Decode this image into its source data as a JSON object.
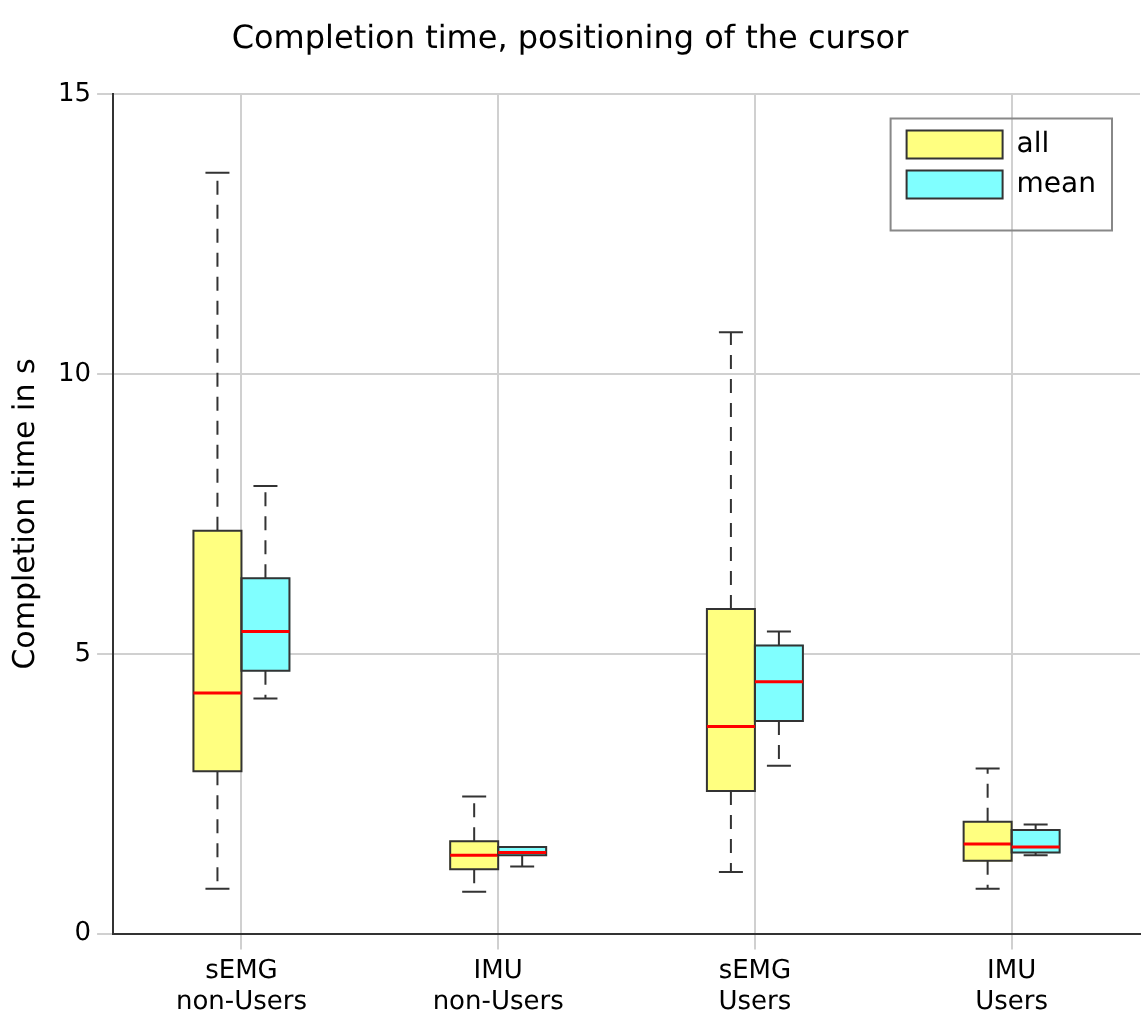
{
  "chart_data": {
    "type": "box",
    "title": "Completion time, positioning of the cursor",
    "ylabel": "Completion time in s",
    "categories": [
      "sEMG\nnon-Users",
      "IMU\nnon-Users",
      "sEMG\nUsers",
      "IMU\nUsers"
    ],
    "ylim": [
      0,
      15
    ],
    "yticks": [
      0,
      5,
      10,
      15
    ],
    "grid": true,
    "legend": "top right",
    "series": [
      {
        "name": "all",
        "color": "#ffff80",
        "boxes": [
          {
            "low": 0.8,
            "q1": 2.9,
            "median": 4.3,
            "q3": 7.2,
            "high": 13.6
          },
          {
            "low": 0.75,
            "q1": 1.15,
            "median": 1.4,
            "q3": 1.65,
            "high": 2.45
          },
          {
            "low": 1.1,
            "q1": 2.55,
            "median": 3.7,
            "q3": 5.8,
            "high": 10.75
          },
          {
            "low": 0.8,
            "q1": 1.3,
            "median": 1.6,
            "q3": 2.0,
            "high": 2.95
          }
        ]
      },
      {
        "name": "mean",
        "color": "#80ffff",
        "boxes": [
          {
            "low": 4.2,
            "q1": 4.7,
            "median": 5.4,
            "q3": 6.35,
            "high": 8.0
          },
          {
            "low": 1.2,
            "q1": 1.4,
            "median": 1.45,
            "q3": 1.55,
            "high": 1.55
          },
          {
            "low": 3.0,
            "q1": 3.8,
            "median": 4.5,
            "q3": 5.15,
            "high": 5.4
          },
          {
            "low": 1.4,
            "q1": 1.45,
            "median": 1.55,
            "q3": 1.85,
            "high": 1.95
          }
        ]
      }
    ]
  }
}
